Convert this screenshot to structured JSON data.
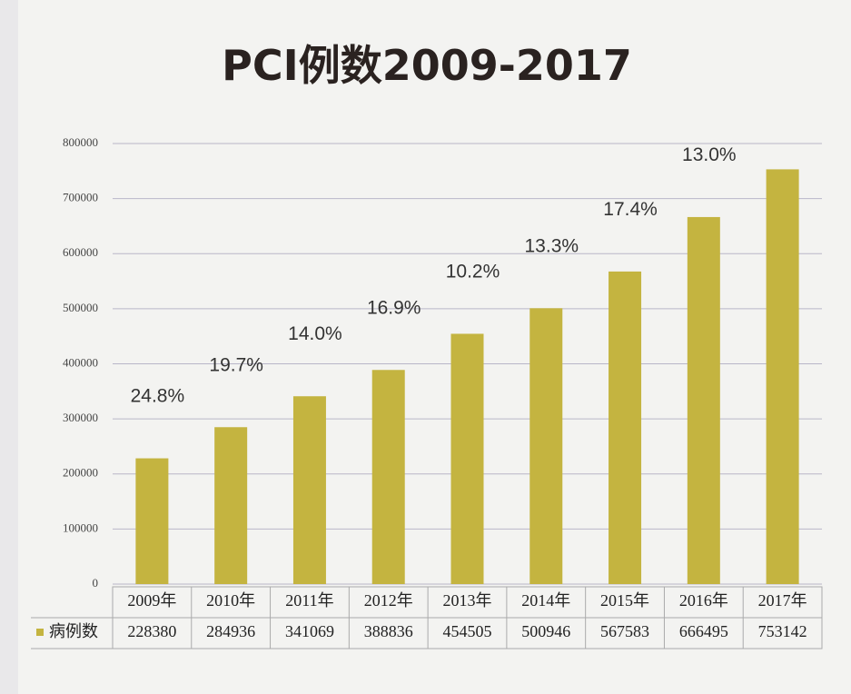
{
  "chart_data": {
    "type": "bar",
    "title": "PCI例数2009-2017",
    "categories": [
      "2009年",
      "2010年",
      "2011年",
      "2012年",
      "2013年",
      "2014年",
      "2015年",
      "2016年",
      "2017年"
    ],
    "series": [
      {
        "name": "病例数",
        "color": "#c4b440",
        "values": [
          228380,
          284936,
          341069,
          388836,
          454505,
          500946,
          567583,
          666495,
          753142
        ]
      }
    ],
    "annotations": [
      "24.8%",
      "19.7%",
      "14.0%",
      "16.9%",
      "10.2%",
      "13.3%",
      "17.4%",
      "13.0%"
    ],
    "ylim": [
      0,
      800000
    ],
    "yticks": [
      0,
      100000,
      200000,
      300000,
      400000,
      500000,
      600000,
      700000,
      800000
    ],
    "grid": true
  }
}
